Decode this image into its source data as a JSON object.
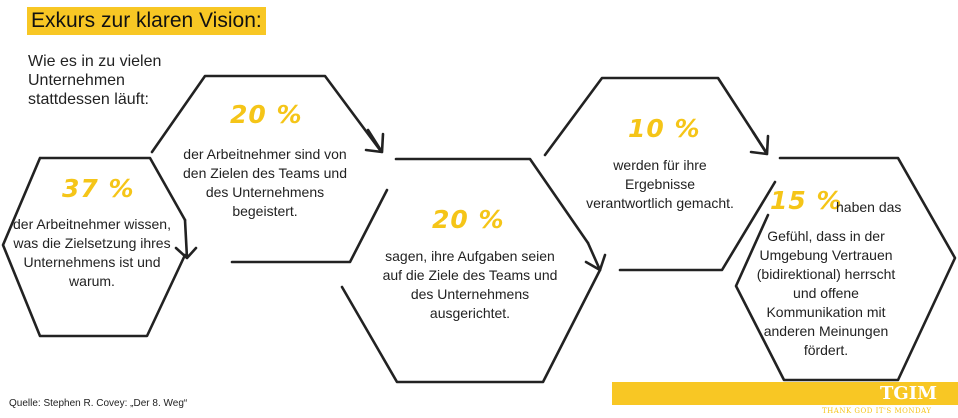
{
  "title": "Exkurs zur klaren Vision:",
  "subtitle": "Wie es in zu vielen Unternehmen stattdessen läuft:",
  "stats": [
    {
      "percent": "37 %",
      "text": "der Arbeitnehmer wissen, was die Zielsetzung ihres Unternehmens ist und warum."
    },
    {
      "percent": "20 %",
      "text": "der Arbeitnehmer sind von den Zielen des Teams und des Unternehmens begeistert."
    },
    {
      "percent": "20 %",
      "text": "sagen, ihre Aufgaben seien auf die Ziele des Teams und des Unternehmens ausgerichtet."
    },
    {
      "percent": "10 %",
      "text": "werden für ihre Ergebnisse verantwortlich gemacht."
    },
    {
      "percent": "15 %",
      "lead": "haben das",
      "text": "Gefühl, dass in der Umgebung Vertrauen (bidirektional) herrscht und offene Kommunikation mit anderen Meinungen fördert."
    }
  ],
  "source": "Quelle: Stephen R. Covey: „Der 8. Weg“",
  "brand": {
    "logo": "TGIM",
    "tagline": "THANK GOD IT'S MONDAY"
  },
  "colors": {
    "accent": "#f8c724",
    "line": "#222222"
  }
}
